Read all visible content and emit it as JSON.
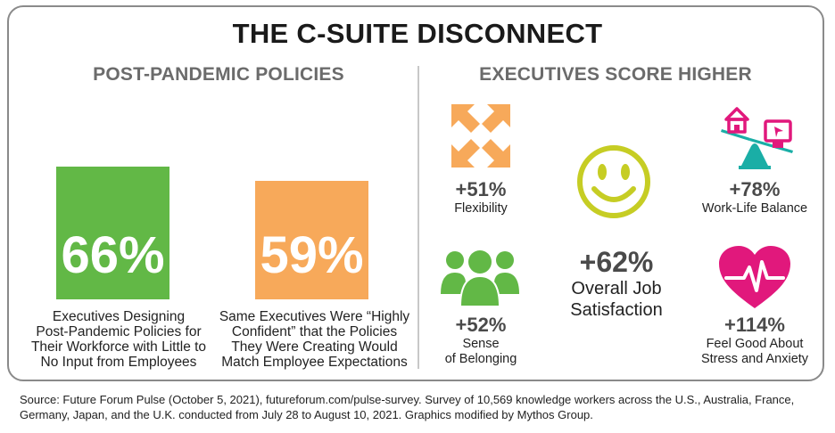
{
  "title": "THE C-SUITE DISCONNECT",
  "left_heading": "POST-PANDEMIC POLICIES",
  "right_heading": "EXECUTIVES SCORE HIGHER",
  "colors": {
    "green": "#62b846",
    "orange": "#f7a95a",
    "teal": "#1aaea6",
    "lime": "#c6cd24",
    "magenta": "#e1187c",
    "text_gray": "#6b6b6b"
  },
  "chart_data": [
    {
      "type": "bar",
      "title": "POST-PANDEMIC POLICIES",
      "unit": "%",
      "ylim": [
        0,
        100
      ],
      "categories": [
        "Executives Designing Post-Pandemic Policies for Their Workforce with Little to No Input from Employees",
        "Same Executives Were “Highly Confident” that the Policies They Were Creating Would Match Employee Expectations"
      ],
      "values": [
        66,
        59
      ],
      "labels": [
        "66%",
        "59%"
      ],
      "colors": [
        "#62b846",
        "#f7a95a"
      ],
      "captions": [
        [
          "Executives Designing",
          "Post-Pandemic Policies for",
          "Their Workforce with Little to",
          "No Input from Employees"
        ],
        [
          "Same Executives Were “Highly",
          "Confident” that the Policies",
          "They Were Creating Would",
          "Match Employee Expectations"
        ]
      ]
    },
    {
      "type": "table",
      "title": "EXECUTIVES SCORE HIGHER",
      "unit": "%",
      "metrics": [
        {
          "name": "Flexibility",
          "value": 51,
          "label": "+51%",
          "icon": "expand-arrows-icon",
          "lines": [
            "Flexibility"
          ]
        },
        {
          "name": "Overall Job Satisfaction",
          "value": 62,
          "label": "+62%",
          "icon": "smiley-face-icon",
          "lines": [
            "Overall Job",
            "Satisfaction"
          ]
        },
        {
          "name": "Work-Life Balance",
          "value": 78,
          "label": "+78%",
          "icon": "home-work-seesaw-icon",
          "lines": [
            "Work-Life Balance"
          ]
        },
        {
          "name": "Sense of Belonging",
          "value": 52,
          "label": "+52%",
          "icon": "group-people-icon",
          "lines": [
            "Sense",
            "of Belonging"
          ]
        },
        {
          "name": "Feel Good About Stress and Anxiety",
          "value": 114,
          "label": "+114%",
          "icon": "heartbeat-icon",
          "lines": [
            "Feel Good About",
            "Stress and Anxiety"
          ]
        }
      ]
    }
  ],
  "source_lines": [
    "Source: Future Forum Pulse (October 5, 2021), futureforum.com/pulse-survey. Survey of 10,569 knowledge workers across the U.S., Australia, France,",
    "Germany, Japan, and the U.K. conducted from July 28 to August 10, 2021. Graphics modified by Mythos Group."
  ]
}
